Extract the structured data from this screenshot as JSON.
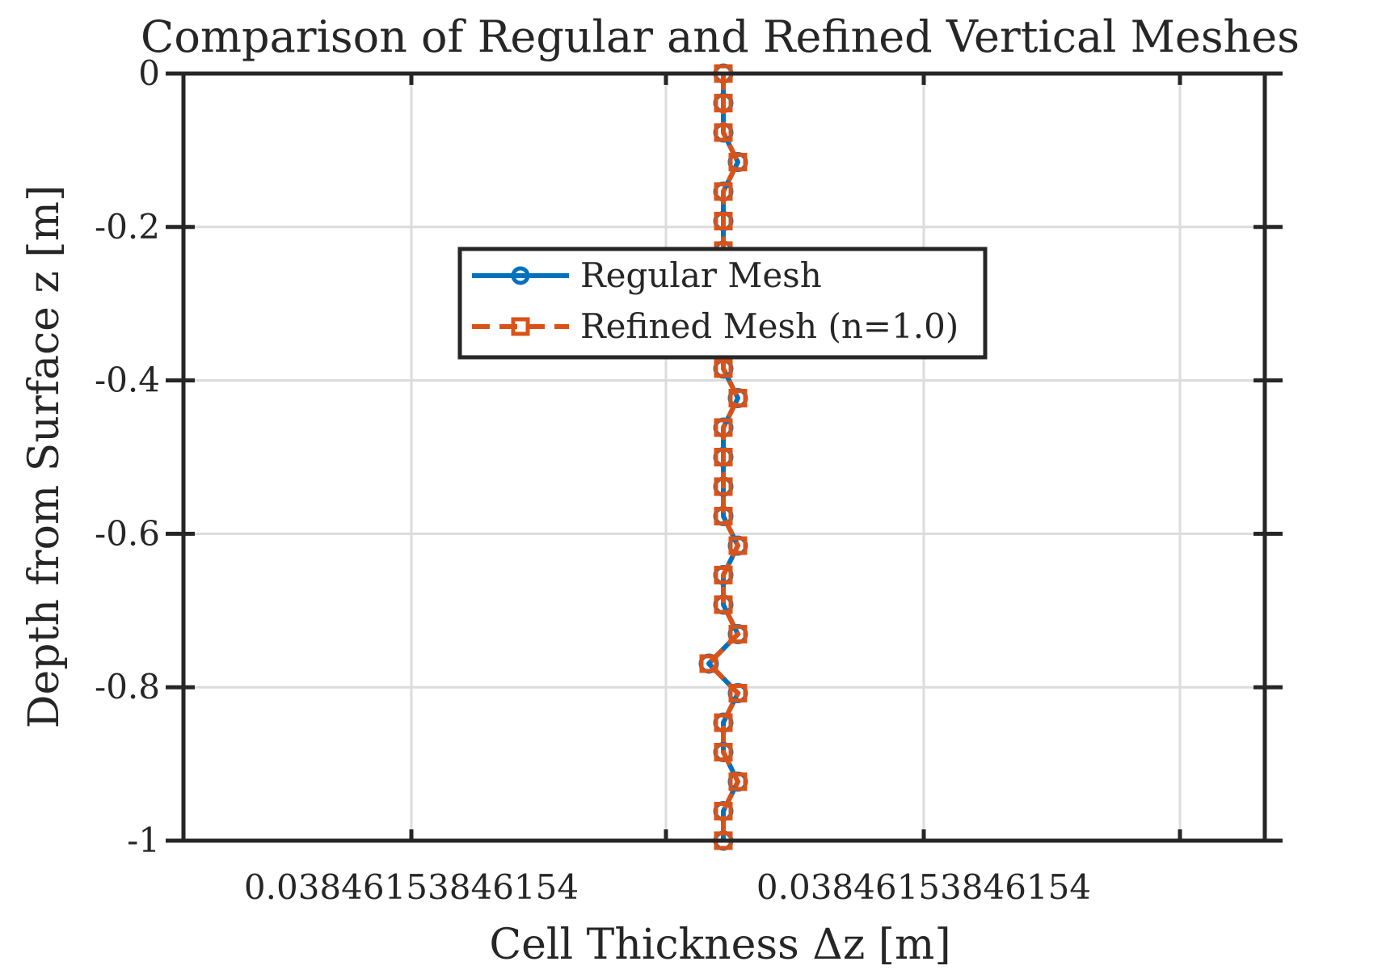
{
  "chart_data": {
    "type": "line",
    "title": "Comparison of Regular and Refined Vertical Meshes",
    "xlabel": "Cell Thickness Δz [m]",
    "ylabel": "Depth from Surface z [m]",
    "x_ticks": [
      {
        "x": 0.03846153846154,
        "label": "0.03846153846154"
      },
      {
        "x": 0.03846153846154,
        "label": "0.03846153846154"
      }
    ],
    "y_ticks": [
      {
        "value": 0,
        "label": "0"
      },
      {
        "value": -0.2,
        "label": "-0.2"
      },
      {
        "value": -0.4,
        "label": "-0.4"
      },
      {
        "value": -0.6,
        "label": "-0.6"
      },
      {
        "value": -0.8,
        "label": "-0.8"
      },
      {
        "value": -1,
        "label": "-1"
      }
    ],
    "ylim": [
      -1,
      0
    ],
    "grid": true,
    "legend_position": "upper-center",
    "z": [
      0,
      -0.0385,
      -0.0769,
      -0.1154,
      -0.1538,
      -0.1923,
      -0.2308,
      -0.2692,
      -0.3077,
      -0.3462,
      -0.3846,
      -0.4231,
      -0.4615,
      -0.5,
      -0.5385,
      -0.5769,
      -0.6154,
      -0.6538,
      -0.6923,
      -0.7308,
      -0.7692,
      -0.8077,
      -0.8462,
      -0.8846,
      -0.9231,
      -0.9615,
      -1
    ],
    "offsets_relative": [
      0,
      0,
      0,
      1,
      0,
      0,
      0,
      0,
      0,
      0,
      0,
      1,
      0,
      0,
      0,
      0,
      1,
      0,
      0,
      1,
      -1,
      1,
      0,
      0,
      1,
      0,
      0
    ],
    "series": [
      {
        "name": "Regular Mesh",
        "color": "#0072BD",
        "line_style": "solid",
        "marker": "circle"
      },
      {
        "name": "Refined Mesh (n=1.0)",
        "color": "#D95319",
        "line_style": "dashed",
        "marker": "square"
      }
    ]
  }
}
